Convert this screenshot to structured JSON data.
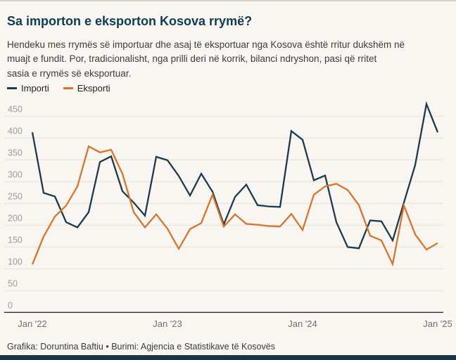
{
  "header": {
    "title": "Sa importon e eksporton Kosova rrymë?",
    "subtitle_lines": [
      "Hendeku mes rrymës së importuar dhe asaj të eksportuar nga Kosova është rritur dukshëm në",
      "muajt e fundit. Por, tradicionalisht, nga prilli deri në korrik, bilanci ndryshon, pasi që rritet",
      "sasia e rrymës së eksportuar."
    ]
  },
  "legend": [
    {
      "label": "Importi",
      "color": "#1d3a4c"
    },
    {
      "label": "Eksporti",
      "color": "#d9742f"
    }
  ],
  "footer": {
    "text": "Grafika: Doruntina Baftiu • Burimi: Agjencia e Statistikave të Kosovës"
  },
  "colors": {
    "background": "#f9f6f1",
    "gridline": "#e4e0d8",
    "axis_baseline": "#2e2e2e",
    "y_tick_label": "#9b9b9b",
    "x_tick_label": "#6f6f6f",
    "importi": "#1d3a4c",
    "eksporti": "#d9742f"
  },
  "chart_data": {
    "type": "line",
    "title": "Sa importon e eksporton Kosova rrymë?",
    "x_description": "monthly, Jan 2022 – Jan 2025",
    "x_tick_labels": [
      "Jan '22",
      "Jan '23",
      "Jan '24",
      "Jan '25"
    ],
    "x_tick_month_indices": [
      0,
      12,
      24,
      36
    ],
    "y_ticks": [
      0,
      50,
      100,
      150,
      200,
      250,
      300,
      350,
      400,
      450
    ],
    "ylim": [
      0,
      490
    ],
    "grid": "horizontal",
    "legend_position": "top-left",
    "series": [
      {
        "name": "Importi",
        "color": "#1d3a4c",
        "values": [
          413,
          274,
          266,
          207,
          195,
          230,
          345,
          358,
          278,
          252,
          222,
          357,
          349,
          313,
          268,
          318,
          277,
          202,
          265,
          293,
          246,
          243,
          242,
          416,
          396,
          303,
          314,
          207,
          150,
          147,
          211,
          209,
          165,
          252,
          338,
          478,
          413
        ]
      },
      {
        "name": "Eksporti",
        "color": "#d9742f",
        "values": [
          110,
          174,
          220,
          245,
          289,
          381,
          367,
          373,
          318,
          230,
          195,
          225,
          192,
          146,
          191,
          205,
          270,
          197,
          225,
          203,
          201,
          198,
          197,
          226,
          189,
          270,
          289,
          295,
          281,
          246,
          176,
          165,
          111,
          245,
          179,
          144,
          159
        ]
      }
    ]
  }
}
